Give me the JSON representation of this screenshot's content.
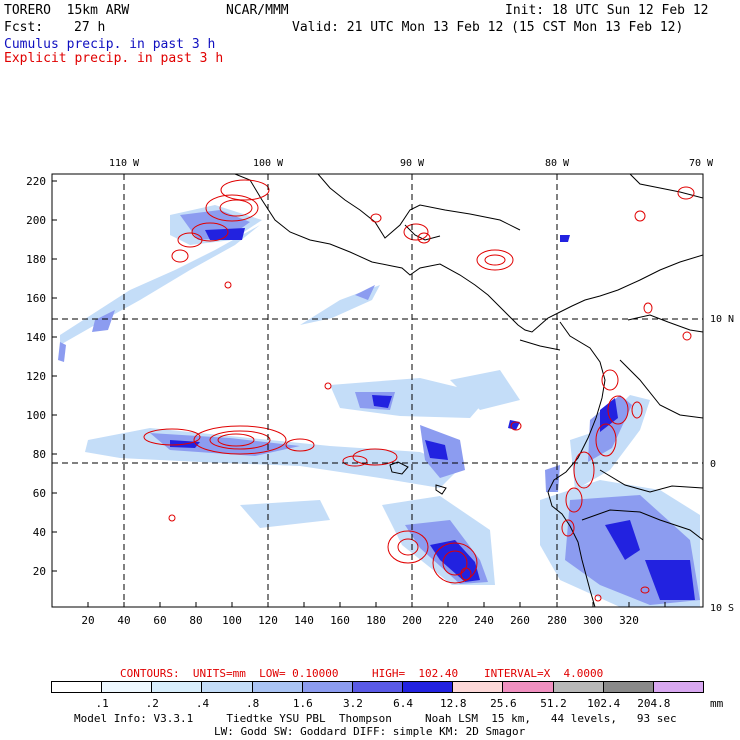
{
  "header": {
    "model": "TORERO  15km ARW",
    "org": "NCAR/MMM",
    "init": "Init: 18 UTC Sun 12 Feb 12",
    "fcst_label": "Fcst:",
    "fcst_value": "27 h",
    "valid": "Valid: 21 UTC Mon 13 Feb 12 (15 CST Mon 13 Feb 12)",
    "cumulus_title": "Cumulus precip. in past 3 h",
    "explicit_title": "Explicit precip. in past 3 h"
  },
  "map": {
    "lon_labels_top": [
      "110 W",
      "100 W",
      "90 W",
      "80 W",
      "70 W"
    ],
    "lat_labels_right": [
      "10 N",
      "0",
      "10 S"
    ],
    "y_ticks": [
      "220",
      "200",
      "180",
      "160",
      "140",
      "120",
      "100",
      "80",
      "60",
      "40",
      "20"
    ],
    "x_ticks": [
      "20",
      "40",
      "60",
      "80",
      "100",
      "120",
      "140",
      "160",
      "180",
      "200",
      "220",
      "240",
      "260",
      "280",
      "300",
      "320"
    ],
    "colors": {
      "cumulus": "#3030e0",
      "explicit_contour": "#e00000",
      "land_lines": "#000000"
    }
  },
  "contour_info": {
    "contours": "CONTOURS:  UNITS=mm  LOW= 0.10000",
    "high": "HIGH=  102.40",
    "interval": "INTERVAL=X  4.0000"
  },
  "colorbar": {
    "levels": [
      ".1",
      ".2",
      ".4",
      ".8",
      "1.6",
      "3.2",
      "6.4",
      "12.8",
      "25.6",
      "51.2",
      "102.4",
      "204.8"
    ],
    "units": "mm",
    "colors": [
      "#ffffff",
      "#eef8ff",
      "#d8eefc",
      "#c4ddf8",
      "#aac4f4",
      "#8c9cf0",
      "#5a5ae6",
      "#2222e0",
      "#fcd8d8",
      "#f090c0",
      "#b8b8b8",
      "#8a8a8a",
      "#d8a8f0"
    ]
  },
  "footer": {
    "line1": "Model Info: V3.3.1     Tiedtke YSU PBL  Thompson     Noah LSM  15 km,   44 levels,   93 sec",
    "line2": "LW: Godd SW: Goddard DIFF: simple KM: 2D Smagor"
  }
}
